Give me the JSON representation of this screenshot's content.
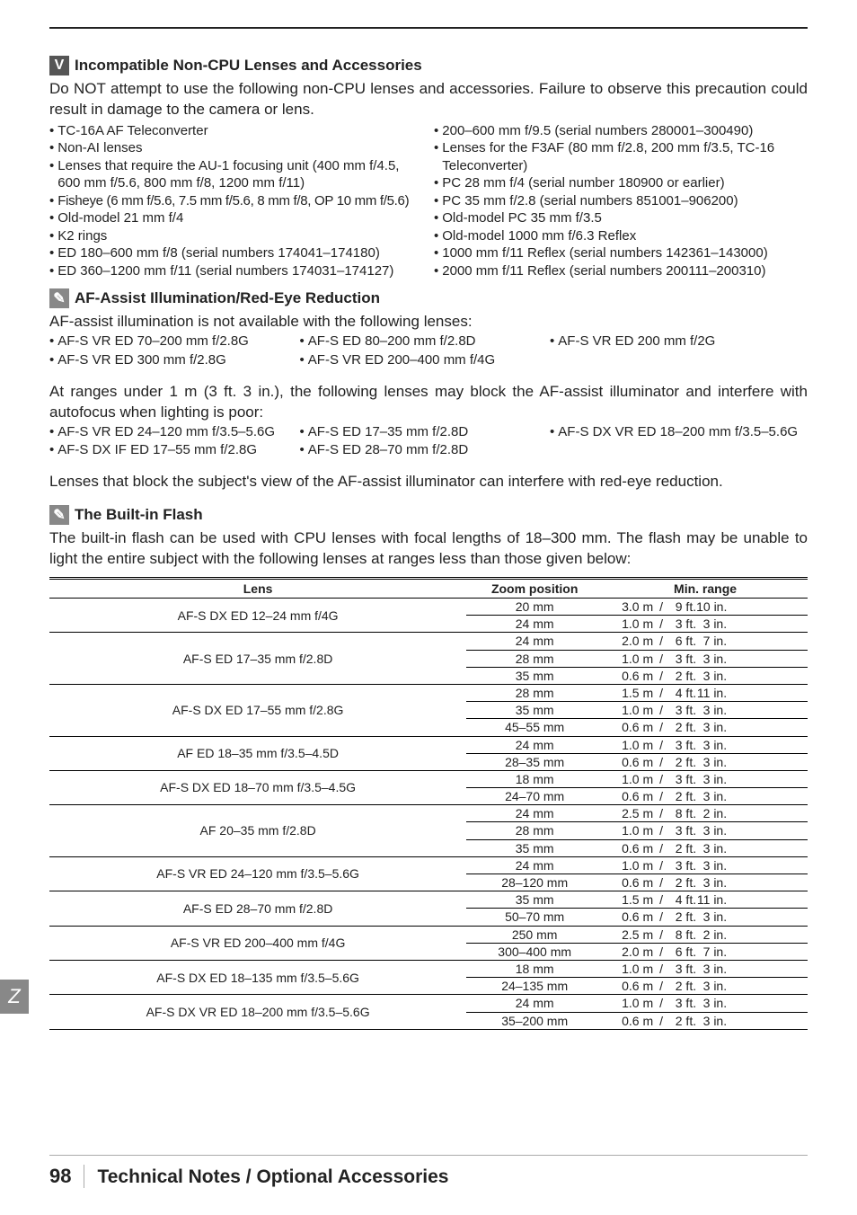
{
  "section1": {
    "title": "Incompatible Non-CPU Lenses and Accessories",
    "intro_prefix": "Do ",
    "intro_not": "NOT",
    "intro_rest": " attempt to use the following non-CPU lenses and accessories.  Failure to observe this precaution could result in damage to the camera or lens.",
    "left": [
      "TC-16A AF Teleconverter",
      "Non-AI lenses",
      "Lenses that require the AU-1 focusing unit (400 mm f/4.5, 600 mm f/5.6, 800 mm f/8, 1200 mm f/11)",
      "Fisheye (6 mm f/5.6, 7.5 mm f/5.6, 8 mm f/8, OP 10 mm f/5.6)",
      "Old-model 21 mm f/4",
      "K2 rings",
      "ED 180–600 mm f/8 (serial numbers 174041–174180)",
      "ED 360–1200 mm f/11 (serial numbers 174031–174127)"
    ],
    "right": [
      "200–600 mm f/9.5 (serial numbers 280001–300490)",
      "Lenses for the F3AF (80 mm f/2.8, 200 mm f/3.5, TC-16 Teleconverter)",
      "PC 28 mm f/4 (serial number 180900 or earlier)",
      "PC 35 mm f/2.8 (serial numbers 851001–906200)",
      "Old-model PC 35 mm f/3.5",
      "Old-model 1000 mm f/6.3 Reflex",
      "1000 mm f/11 Reflex (serial numbers 142361–143000)",
      "2000 mm f/11 Reflex (serial numbers 200111–200310)"
    ]
  },
  "section2": {
    "title": "AF-Assist Illumination/Red-Eye Reduction",
    "intro": "AF-assist illumination is not available with the following lenses:",
    "listA_c1": [
      "AF-S VR ED 70–200 mm f/2.8G",
      "AF-S VR ED 300 mm f/2.8G"
    ],
    "listA_c2": [
      "AF-S ED 80–200 mm f/2.8D",
      "AF-S VR ED 200–400 mm f/4G"
    ],
    "listA_c3": [
      "AF-S VR ED 200 mm f/2G"
    ],
    "para2": "At ranges under 1 m (3 ft. 3 in.), the following lenses may block the AF-assist illuminator and interfere with autofocus when lighting is poor:",
    "listB_c1": [
      "AF-S VR ED 24–120 mm f/3.5–5.6G",
      "AF-S DX IF ED 17–55 mm f/2.8G"
    ],
    "listB_c2": [
      "AF-S ED 17–35 mm f/2.8D",
      "AF-S ED 28–70 mm f/2.8D"
    ],
    "listB_c3": [
      "AF-S DX VR ED 18–200 mm f/3.5–5.6G"
    ],
    "para3": "Lenses that block the subject's view of the AF-assist illuminator can interfere with red-eye reduction."
  },
  "section3": {
    "title": "The Built-in Flash",
    "intro": "The built-in flash can be used with CPU lenses with focal lengths of 18–300 mm.  The flash may be unable to light the entire subject with the following lenses at ranges less than those given below:",
    "headers": {
      "lens": "Lens",
      "zoom": "Zoom position",
      "range": "Min. range"
    }
  },
  "footer": {
    "page": "98",
    "title": "Technical Notes / Optional Accessories"
  },
  "sideTab": "Z",
  "flash_table": [
    {
      "lens": "AF-S DX ED 12–24 mm f/4G",
      "rows": [
        [
          "20 mm",
          "3.0 m",
          "9 ft.",
          "10 in."
        ],
        [
          "24 mm",
          "1.0 m",
          "3 ft.",
          "3 in."
        ]
      ]
    },
    {
      "lens": "AF-S ED 17–35 mm f/2.8D",
      "rows": [
        [
          "24 mm",
          "2.0 m",
          "6 ft.",
          "7 in."
        ],
        [
          "28 mm",
          "1.0 m",
          "3 ft.",
          "3 in."
        ],
        [
          "35 mm",
          "0.6 m",
          "2 ft.",
          "3 in."
        ]
      ]
    },
    {
      "lens": "AF-S DX ED 17–55 mm f/2.8G",
      "rows": [
        [
          "28 mm",
          "1.5 m",
          "4 ft.",
          "11 in."
        ],
        [
          "35 mm",
          "1.0 m",
          "3 ft.",
          "3 in."
        ],
        [
          "45–55 mm",
          "0.6 m",
          "2 ft.",
          "3 in."
        ]
      ]
    },
    {
      "lens": "AF ED 18–35 mm f/3.5–4.5D",
      "rows": [
        [
          "24 mm",
          "1.0 m",
          "3 ft.",
          "3 in."
        ],
        [
          "28–35 mm",
          "0.6 m",
          "2 ft.",
          "3 in."
        ]
      ]
    },
    {
      "lens": "AF-S DX ED 18–70 mm f/3.5–4.5G",
      "rows": [
        [
          "18 mm",
          "1.0 m",
          "3 ft.",
          "3 in."
        ],
        [
          "24–70 mm",
          "0.6 m",
          "2 ft.",
          "3 in."
        ]
      ]
    },
    {
      "lens": "AF 20–35 mm f/2.8D",
      "rows": [
        [
          "24 mm",
          "2.5 m",
          "8 ft.",
          "2 in."
        ],
        [
          "28 mm",
          "1.0 m",
          "3 ft.",
          "3 in."
        ],
        [
          "35 mm",
          "0.6 m",
          "2 ft.",
          "3 in."
        ]
      ]
    },
    {
      "lens": "AF-S VR ED 24–120 mm f/3.5–5.6G",
      "rows": [
        [
          "24 mm",
          "1.0 m",
          "3 ft.",
          "3 in."
        ],
        [
          "28–120 mm",
          "0.6 m",
          "2 ft.",
          "3 in."
        ]
      ]
    },
    {
      "lens": "AF-S ED 28–70 mm f/2.8D",
      "rows": [
        [
          "35 mm",
          "1.5 m",
          "4 ft.",
          "11 in."
        ],
        [
          "50–70 mm",
          "0.6 m",
          "2 ft.",
          "3 in."
        ]
      ]
    },
    {
      "lens": "AF-S VR ED 200–400 mm f/4G",
      "rows": [
        [
          "250 mm",
          "2.5 m",
          "8 ft.",
          "2 in."
        ],
        [
          "300–400 mm",
          "2.0 m",
          "6 ft.",
          "7 in."
        ]
      ]
    },
    {
      "lens": "AF-S DX ED 18–135 mm f/3.5–5.6G",
      "rows": [
        [
          "18 mm",
          "1.0 m",
          "3 ft.",
          "3 in."
        ],
        [
          "24–135 mm",
          "0.6 m",
          "2 ft.",
          "3 in."
        ]
      ]
    },
    {
      "lens": "AF-S DX VR ED 18–200 mm f/3.5–5.6G",
      "rows": [
        [
          "24 mm",
          "1.0 m",
          "3 ft.",
          "3 in."
        ],
        [
          "35–200 mm",
          "0.6 m",
          "2 ft.",
          "3 in."
        ]
      ]
    }
  ]
}
